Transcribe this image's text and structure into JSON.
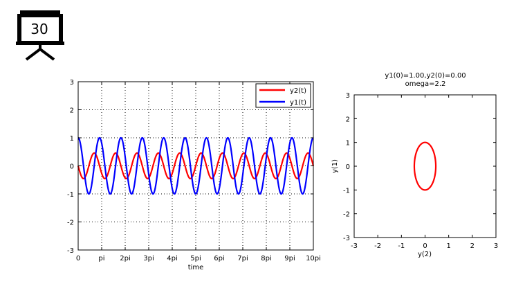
{
  "slide": {
    "number": "30",
    "icon": "presentation-board-icon"
  },
  "chart_data": [
    {
      "type": "line",
      "title": "",
      "xlabel": "time",
      "ylabel": "",
      "xlim": [
        0,
        31.4159
      ],
      "ylim": [
        -3,
        3
      ],
      "x_ticks": [
        {
          "value": 0,
          "label": "0"
        },
        {
          "value": 3.14159,
          "label": "pi"
        },
        {
          "value": 6.28319,
          "label": "2pi"
        },
        {
          "value": 9.42478,
          "label": "3pi"
        },
        {
          "value": 12.56637,
          "label": "4pi"
        },
        {
          "value": 15.70796,
          "label": "5pi"
        },
        {
          "value": 18.84956,
          "label": "6pi"
        },
        {
          "value": 21.99115,
          "label": "7pi"
        },
        {
          "value": 25.13274,
          "label": "8pi"
        },
        {
          "value": 28.27433,
          "label": "9pi"
        },
        {
          "value": 31.41593,
          "label": "10pi"
        }
      ],
      "y_ticks": [
        {
          "value": 3,
          "label": "3"
        },
        {
          "value": 2,
          "label": "2"
        },
        {
          "value": 1,
          "label": "1"
        },
        {
          "value": 0,
          "label": "0"
        },
        {
          "value": -1,
          "label": "-1"
        },
        {
          "value": -2,
          "label": "-2"
        },
        {
          "value": -3,
          "label": "-3"
        }
      ],
      "grid": true,
      "legend_position": "top-right",
      "omega": 2.2,
      "series": [
        {
          "name": "y2(t)",
          "color": "#ff0000",
          "function": "y2(t) = -sin(omega*t)/omega",
          "amplitude": 0.4545
        },
        {
          "name": "y1(t)",
          "color": "#0000ff",
          "function": "y1(t) = cos(omega*t)",
          "amplitude": 1.0
        }
      ]
    },
    {
      "type": "line",
      "title": "y1(0)=1.00,y2(0)=0.00",
      "subtitle": "omega=2.2",
      "xlabel": "y(2)",
      "ylabel": "y(1)",
      "xlim": [
        -3,
        3
      ],
      "ylim": [
        -3,
        3
      ],
      "x_ticks": [
        {
          "value": -3,
          "label": "-3"
        },
        {
          "value": -2,
          "label": "-2"
        },
        {
          "value": -1,
          "label": "-1"
        },
        {
          "value": 0,
          "label": "0"
        },
        {
          "value": 1,
          "label": "1"
        },
        {
          "value": 2,
          "label": "2"
        },
        {
          "value": 3,
          "label": "3"
        }
      ],
      "y_ticks": [
        {
          "value": 3,
          "label": "3"
        },
        {
          "value": 2,
          "label": "2"
        },
        {
          "value": 1,
          "label": "1"
        },
        {
          "value": 0,
          "label": "0"
        },
        {
          "value": -1,
          "label": "-1"
        },
        {
          "value": -2,
          "label": "-2"
        },
        {
          "value": -3,
          "label": "-3"
        }
      ],
      "grid": false,
      "series": [
        {
          "name": "",
          "color": "#ff0000",
          "function": "(y2, y1) = (-sin(omega*t)/omega, cos(omega*t))",
          "x_semi_axis": 0.4545,
          "y_semi_axis": 1.0
        }
      ]
    }
  ]
}
